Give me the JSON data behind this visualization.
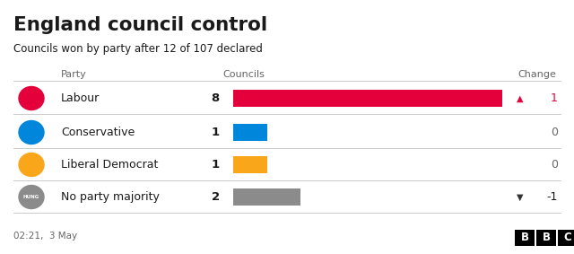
{
  "title": "England council control",
  "subtitle": "Councils won by party after 12 of 107 declared",
  "col_party": "Party",
  "col_councils": "Councils",
  "col_change": "Change",
  "parties": [
    "Labour",
    "Conservative",
    "Liberal Democrat",
    "No party majority"
  ],
  "values": [
    8,
    1,
    1,
    2
  ],
  "bar_colors": [
    "#e4003b",
    "#0087dc",
    "#faa61a",
    "#8b8b8b"
  ],
  "changes": [
    1,
    0,
    0,
    -1
  ],
  "change_symbols": [
    "▲",
    "",
    "",
    "▼"
  ],
  "party_colors": [
    "#e4003b",
    "#0087dc",
    "#faa61a",
    "#8b8b8b"
  ],
  "max_value": 8,
  "timestamp": "02:21,  3 May",
  "bg_color": "#ffffff",
  "text_color": "#1a1a1a",
  "header_color": "#666666",
  "divider_color": "#cccccc"
}
